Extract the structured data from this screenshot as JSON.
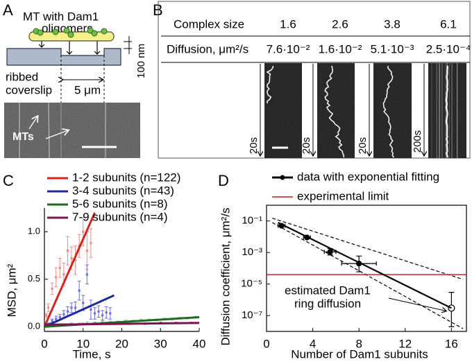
{
  "panel_a": {
    "letter": "A",
    "title_lines": [
      "MT with Dam1",
      "oligomers"
    ],
    "height_label": "100 nm",
    "coverslip_lines": [
      "ribbed",
      "coverslip"
    ],
    "spacing_label": "5 μm",
    "mt_label": "MTs"
  },
  "panel_b": {
    "letter": "B",
    "table": {
      "rows": [
        [
          "Complex size",
          1.6,
          2.6,
          3.8,
          6.1
        ],
        [
          "Diffusion, μm²/s",
          "7.6·10⁻²",
          "1.6·10⁻²",
          "5.1·10⁻³",
          "2.5·10⁻⁴"
        ]
      ]
    },
    "time_labels": [
      "20s",
      "20s",
      "20s",
      "200s"
    ]
  },
  "chart_data": [
    {
      "type": "scatter",
      "panel_label": "C",
      "x_label": "Time, s",
      "y_label": "MSD, μm²",
      "xlim": [
        0,
        40
      ],
      "xticks": [
        0,
        10,
        20,
        30,
        40
      ],
      "ylim": [
        -0.05,
        1.25
      ],
      "yticks": [
        {
          "value": 0,
          "label": "0.0"
        },
        {
          "value": 0.5,
          "label": "0.5"
        },
        {
          "value": 1,
          "label": "1.0"
        }
      ],
      "series": [
        {
          "name": "1-2 subunits (n=122)",
          "color": "#d9221c",
          "point_color": "#f28b84",
          "x": [
            0.5,
            1,
            2,
            3,
            4,
            5,
            6,
            7,
            8,
            9,
            10,
            11,
            12
          ],
          "values": [
            0.12,
            0.2,
            0.4,
            0.52,
            0.62,
            0.55,
            0.8,
            0.72,
            0.7,
            0.85,
            1.0,
            0.8,
            0.88
          ],
          "errors": [
            0.02,
            0.04,
            0.06,
            0.1,
            0.1,
            0.12,
            0.15,
            0.12,
            0.15,
            0.12,
            0.15,
            0.2,
            0.15
          ],
          "fit": {
            "x": [
              0,
              13
            ],
            "values": [
              0,
              1.2
            ]
          }
        },
        {
          "name": "3-4 subunits (n=43)",
          "color": "#1b2a9a",
          "point_color": "#6b6be6",
          "x": [
            1,
            2,
            3,
            4,
            5,
            6,
            7,
            8,
            9,
            10,
            11,
            12,
            13,
            14,
            15,
            16,
            17
          ],
          "values": [
            0.03,
            0.06,
            0.08,
            0.1,
            0.13,
            0.16,
            0.2,
            0.2,
            0.38,
            0.25,
            0.55,
            0.18,
            0.14,
            0.16,
            0.12,
            0.15,
            0.14
          ],
          "errors": [
            0.01,
            0.02,
            0.03,
            0.03,
            0.04,
            0.05,
            0.05,
            0.06,
            0.1,
            0.08,
            0.1,
            0.1,
            0.06,
            0.06,
            0.05,
            0.06,
            0.06
          ],
          "fit": {
            "x": [
              0,
              18
            ],
            "values": [
              0,
              0.33
            ]
          }
        },
        {
          "name": "5-6 subunits (n=8)",
          "color": "#1f6b1f",
          "point_color": "#8fde8f",
          "x": [
            1,
            3,
            5,
            7,
            9,
            11,
            13,
            15,
            17,
            19,
            21,
            23,
            25,
            27,
            29,
            31,
            33,
            35,
            37,
            39
          ],
          "values": [
            0.01,
            0.02,
            0.02,
            0.03,
            0.03,
            0.04,
            0.04,
            0.05,
            0.05,
            0.05,
            0.06,
            0.06,
            0.07,
            0.07,
            0.07,
            0.08,
            0.08,
            0.09,
            0.09,
            0.1
          ],
          "errors": [
            0.01,
            0.01,
            0.01,
            0.01,
            0.01,
            0.01,
            0.01,
            0.01,
            0.01,
            0.01,
            0.01,
            0.01,
            0.01,
            0.01,
            0.01,
            0.01,
            0.01,
            0.01,
            0.01,
            0.01
          ],
          "fit": {
            "x": [
              0,
              40
            ],
            "values": [
              0,
              0.1
            ]
          }
        },
        {
          "name": "7-9 subunits (n=4)",
          "color": "#7a1250",
          "point_color": "#b05a8a",
          "x": [
            2,
            6,
            10,
            14,
            18,
            22,
            26,
            30,
            34,
            38
          ],
          "values": [
            0.02,
            0.02,
            0.03,
            0.03,
            0.03,
            0.03,
            0.03,
            0.04,
            0.04,
            0.04
          ],
          "errors": [
            0.005,
            0.005,
            0.005,
            0.005,
            0.005,
            0.005,
            0.005,
            0.005,
            0.005,
            0.005
          ],
          "fit": {
            "x": [
              0,
              40
            ],
            "values": [
              0.02,
              0.04
            ]
          }
        }
      ]
    },
    {
      "type": "scatter",
      "panel_label": "D",
      "x_label": "Number of Dam1 subunits",
      "y_label": "Diffusion coefficient, μm²/s",
      "log_y": true,
      "frame": true,
      "xlim": [
        0,
        17.3
      ],
      "xticks": [
        0,
        4,
        8,
        12,
        16
      ],
      "ylim": [
        1e-08,
        1
      ],
      "yticks": [
        {
          "value": 0.1,
          "label": "10⁻¹"
        },
        {
          "value": 0.001,
          "label": "10⁻³"
        },
        {
          "value": 1e-05,
          "label": "10⁻⁵"
        },
        {
          "value": 1e-07,
          "label": "10⁻⁷"
        }
      ],
      "series": [
        {
          "name": "data with exponential fitting",
          "color": "#000000",
          "x": [
            1.3,
            3.5,
            5.5,
            8,
            16
          ],
          "values": [
            0.05,
            0.009,
            0.0011,
            0.0002,
            3e-07
          ],
          "hollow": [
            false,
            false,
            false,
            false,
            true
          ],
          "y_lower": [
            null,
            null,
            0.0007,
            6e-05,
            2e-08
          ],
          "y_upper": [
            null,
            null,
            0.0018,
            0.0006,
            3e-06
          ],
          "x_errors": [
            0.3,
            0.3,
            0.5,
            1.5,
            null
          ],
          "fit": {
            "x": [
              1,
              16
            ],
            "values": [
              0.08,
              3e-07
            ]
          }
        }
      ],
      "confidence_upper": {
        "x": [
          0.5,
          17
        ],
        "values": [
          0.15,
          2e-05
        ]
      },
      "confidence_lower": {
        "x": [
          0.5,
          17
        ],
        "values": [
          0.08,
          1.5e-08
        ]
      },
      "limit": 4e-05,
      "limit_label": "experimental limit",
      "limit_color": "#cc1111",
      "annotation_lines": [
        "estimated Dam1",
        "ring diffusion"
      ]
    }
  ]
}
